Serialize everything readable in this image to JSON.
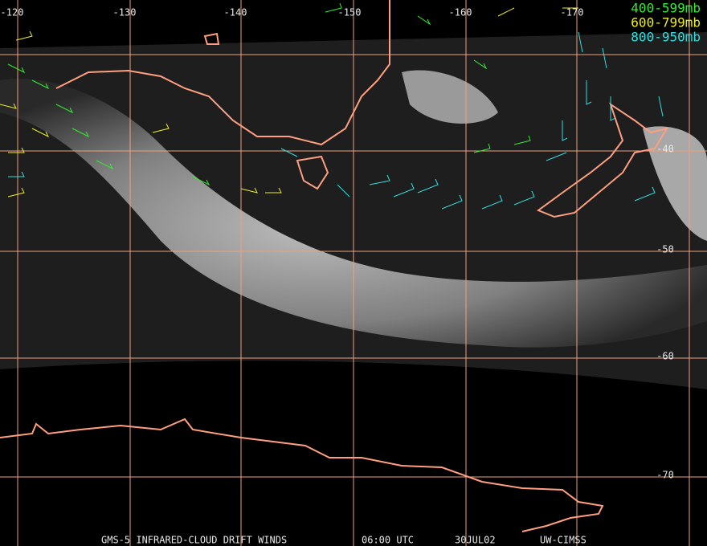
{
  "map": {
    "longitude_labels": [
      "-120",
      "-130",
      "-140",
      "-150",
      "-160",
      "-170"
    ],
    "latitude_labels": [
      "-40",
      "-50",
      "-60",
      "-70"
    ],
    "legend": [
      {
        "label": "400-599mb",
        "color": "#33ee33"
      },
      {
        "label": "600-799mb",
        "color": "#eeee22"
      },
      {
        "label": "800-950mb",
        "color": "#33dddd"
      }
    ],
    "footer": {
      "satellite": "GMS-5 INFRARED-CLOUD DRIFT WINDS",
      "time": "06:00 UTC",
      "date": "30JUL02",
      "source": "UW-CIMSS"
    }
  }
}
